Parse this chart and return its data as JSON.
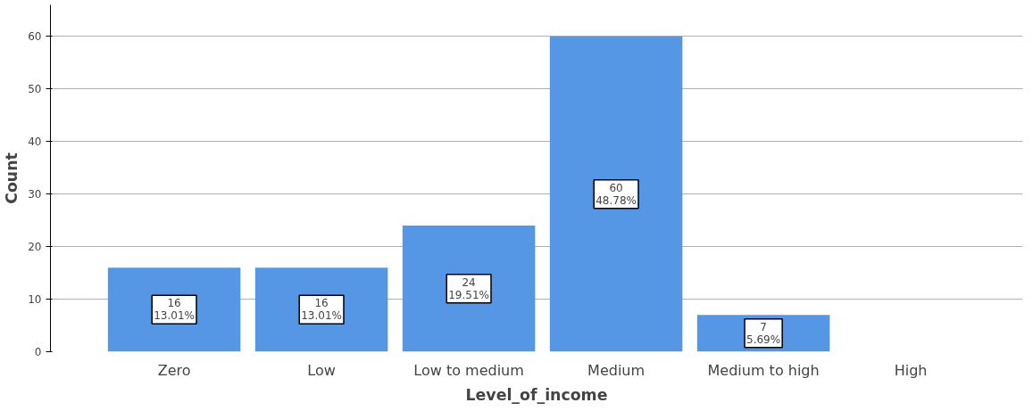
{
  "chart_data": {
    "type": "bar",
    "xlabel": "Level_of_income",
    "ylabel": "Count",
    "categories": [
      "Zero",
      "Low",
      "Low to medium",
      "Medium",
      "Medium to high",
      "High"
    ],
    "values": [
      16,
      16,
      24,
      60,
      7,
      0
    ],
    "value_labels": [
      "16\n13.01%",
      "16\n13.01%",
      "24\n19.51%",
      "60\n48.78%",
      "7\n5.69%",
      null
    ],
    "color": "#5597e4",
    "ylim": [
      0,
      66
    ],
    "yticks": [
      0,
      10,
      20,
      30,
      40,
      50,
      60
    ],
    "grid": "y"
  }
}
